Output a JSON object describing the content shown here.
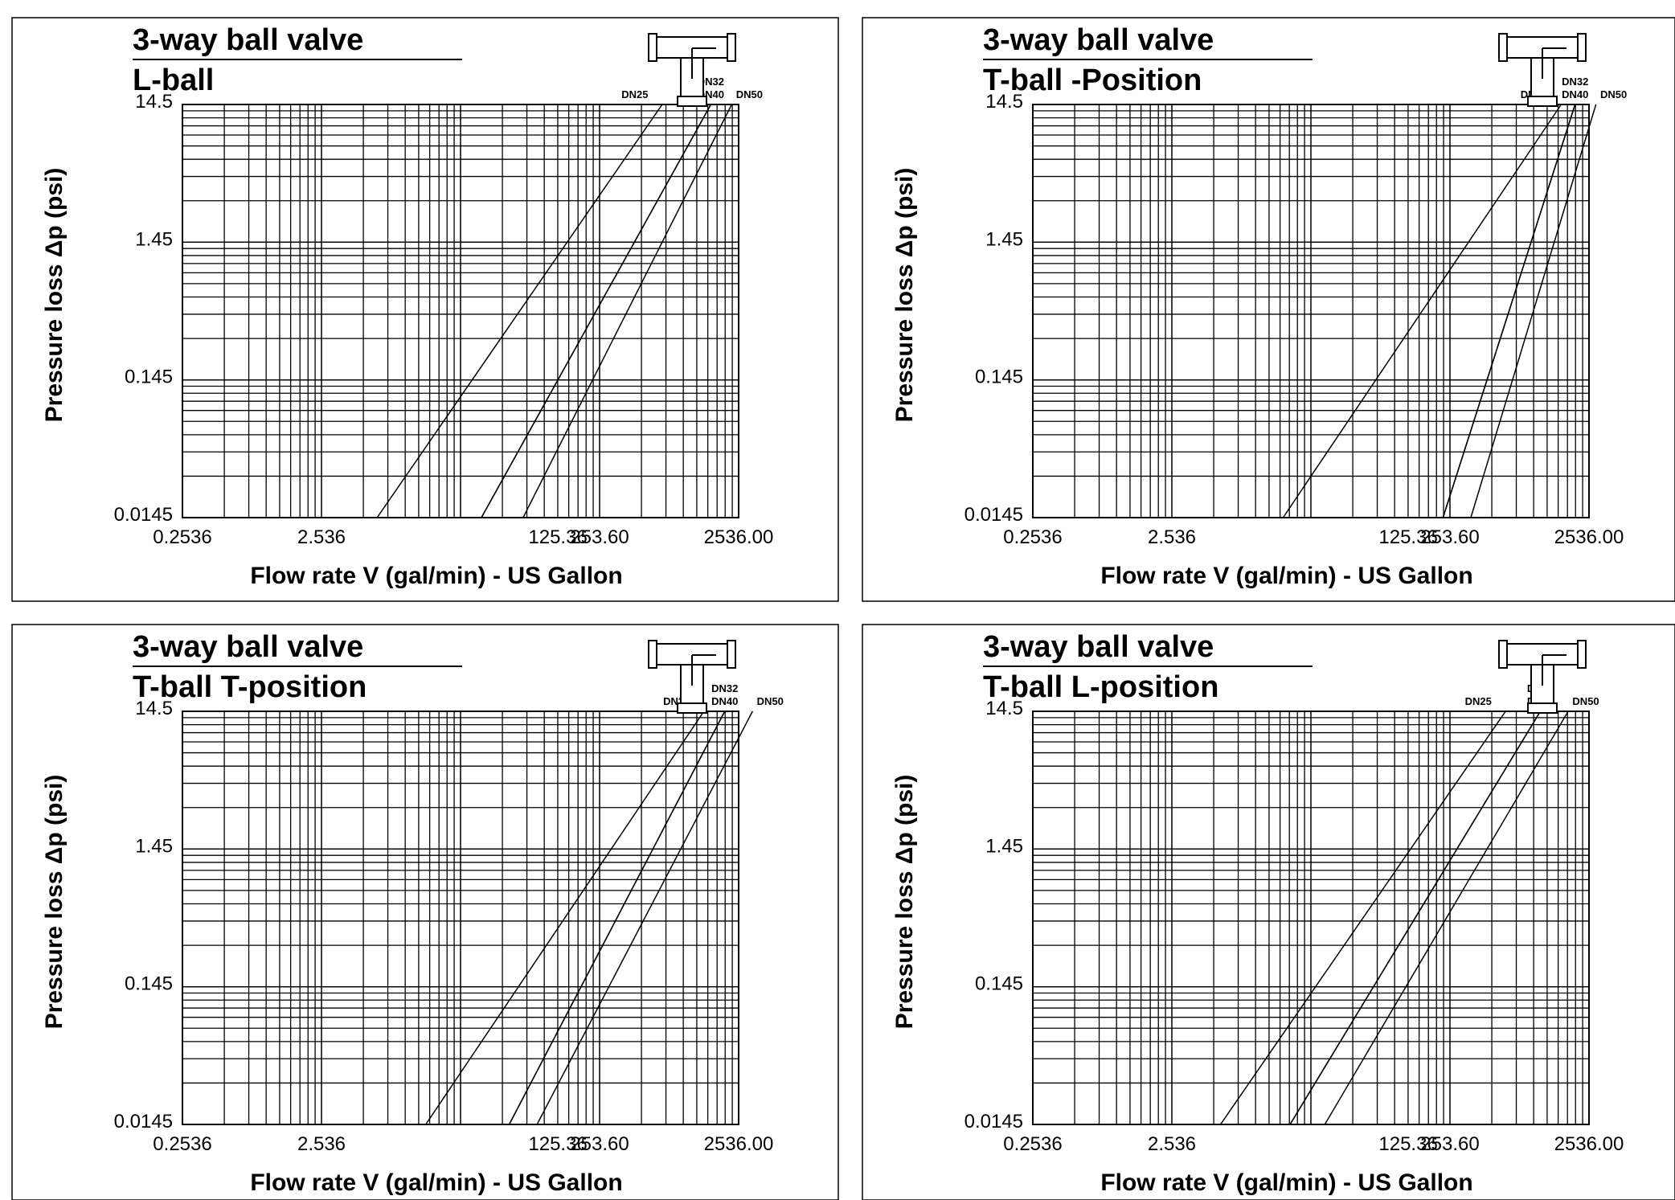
{
  "chart_data": [
    {
      "type": "line",
      "title": "3-way ball valve",
      "subtitle": "L-ball",
      "xlabel": "Flow rate V (gal/min) - US Gallon",
      "ylabel": "Pressure loss Δp (psi)",
      "x_scale": "log",
      "y_scale": "log",
      "x_ticks": [
        "0.2536",
        "2.536",
        "125.36",
        "253.60",
        "2536.00"
      ],
      "y_ticks": [
        "14.5",
        "1.45",
        "0.145",
        "0.0145"
      ],
      "grid": true,
      "series": [
        {
          "name": "DN25",
          "x_decades": [
            1.4,
            3.45
          ],
          "y_decades": [
            0,
            3
          ]
        },
        {
          "name": "DN32",
          "x_decades": [
            2.15,
            3.8
          ],
          "y_decades": [
            0,
            3
          ]
        },
        {
          "name": "DN40",
          "x_decades": [
            2.15,
            3.8
          ],
          "y_decades": [
            0,
            3
          ]
        },
        {
          "name": "DN50",
          "x_decades": [
            2.45,
            3.95
          ],
          "y_decades": [
            0,
            3
          ]
        }
      ]
    },
    {
      "type": "line",
      "title": "3-way ball valve",
      "subtitle": "T-ball -Position",
      "xlabel": "Flow rate V (gal/min) - US Gallon",
      "ylabel": "Pressure loss Δp (psi)",
      "x_scale": "log",
      "y_scale": "log",
      "x_ticks": [
        "0.2536",
        "2.536",
        "125.36",
        "253.60",
        "2536.00"
      ],
      "y_ticks": [
        "14.5",
        "1.45",
        "0.145",
        "0.0145"
      ],
      "grid": true,
      "series": [
        {
          "name": "DN25",
          "x_decades": [
            1.8,
            3.8
          ],
          "y_decades": [
            0,
            3
          ]
        },
        {
          "name": "DN32",
          "x_decades": [
            2.95,
            3.9
          ],
          "y_decades": [
            0,
            3
          ]
        },
        {
          "name": "DN40",
          "x_decades": [
            2.95,
            3.9
          ],
          "y_decades": [
            0,
            3
          ]
        },
        {
          "name": "DN50",
          "x_decades": [
            3.15,
            4.05
          ],
          "y_decades": [
            0,
            3
          ]
        }
      ]
    },
    {
      "type": "line",
      "title": "3-way ball valve",
      "subtitle": "T-ball   T-position",
      "xlabel": "Flow rate V (gal/min) - US Gallon",
      "ylabel": "Pressure loss Δp (psi)",
      "x_scale": "log",
      "y_scale": "log",
      "x_ticks": [
        "0.2536",
        "2.536",
        "125.36",
        "253.60",
        "2536.00"
      ],
      "y_ticks": [
        "14.5",
        "1.45",
        "0.145",
        "0.0145"
      ],
      "grid": true,
      "series": [
        {
          "name": "DN25",
          "x_decades": [
            1.75,
            3.75
          ],
          "y_decades": [
            0,
            3
          ]
        },
        {
          "name": "DN32",
          "x_decades": [
            2.35,
            3.9
          ],
          "y_decades": [
            0,
            3
          ]
        },
        {
          "name": "DN40",
          "x_decades": [
            2.35,
            3.9
          ],
          "y_decades": [
            0,
            3
          ]
        },
        {
          "name": "DN50",
          "x_decades": [
            2.55,
            4.1
          ],
          "y_decades": [
            0,
            3
          ]
        }
      ]
    },
    {
      "type": "line",
      "title": "3-way ball valve",
      "subtitle": "T-ball   L-position",
      "xlabel": "Flow rate V (gal/min) - US Gallon",
      "ylabel": "Pressure loss Δp (psi)",
      "x_scale": "log",
      "y_scale": "log",
      "x_ticks": [
        "0.2536",
        "2.536",
        "125.36",
        "253.60",
        "2536.00"
      ],
      "y_ticks": [
        "14.5",
        "1.45",
        "0.145",
        "0.0145"
      ],
      "grid": true,
      "series": [
        {
          "name": "DN25",
          "x_decades": [
            1.35,
            3.4
          ],
          "y_decades": [
            0,
            3
          ]
        },
        {
          "name": "DN32",
          "x_decades": [
            1.85,
            3.65
          ],
          "y_decades": [
            0,
            3
          ]
        },
        {
          "name": "DN40",
          "x_decades": [
            1.85,
            3.65
          ],
          "y_decades": [
            0,
            3
          ]
        },
        {
          "name": "DN50",
          "x_decades": [
            2.1,
            3.85
          ],
          "y_decades": [
            0,
            3
          ]
        }
      ]
    }
  ]
}
